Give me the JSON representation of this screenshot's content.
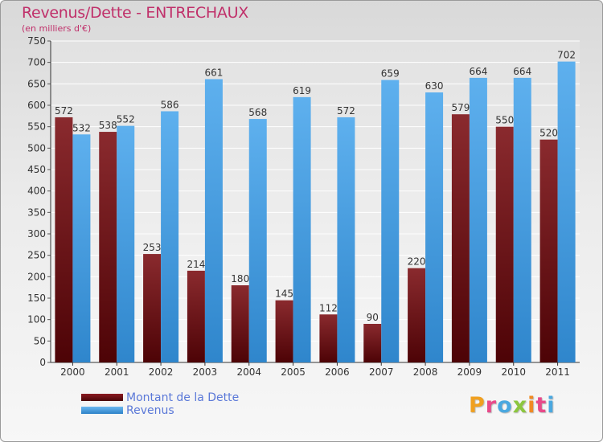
{
  "header": {
    "title": "Revenus/Dette - ENTRECHAUX",
    "subtitle": "(en milliers d'€)"
  },
  "legend": {
    "items": [
      {
        "label": "Montant de la Dette",
        "color": "#6b0e12"
      },
      {
        "label": "Revenus",
        "color": "#4ea3e6"
      }
    ]
  },
  "logo": {
    "text": "Proxiti",
    "letters": [
      {
        "ch": "P",
        "color": "#f0a020"
      },
      {
        "ch": "r",
        "color": "#e84a8a"
      },
      {
        "ch": "o",
        "color": "#4aa8e0"
      },
      {
        "ch": "x",
        "color": "#8cc63f"
      },
      {
        "ch": "i",
        "color": "#f08a24"
      },
      {
        "ch": "t",
        "color": "#e84a8a"
      },
      {
        "ch": "i",
        "color": "#4aa8e0"
      }
    ]
  },
  "chart_data": {
    "type": "bar",
    "title": "Revenus/Dette - ENTRECHAUX",
    "subtitle": "(en milliers d'€)",
    "categories": [
      "2000",
      "2001",
      "2002",
      "2003",
      "2004",
      "2005",
      "2006",
      "2007",
      "2008",
      "2009",
      "2010",
      "2011"
    ],
    "series": [
      {
        "name": "Montant de la Dette",
        "color": "#6b0e12",
        "values": [
          572,
          538,
          253,
          214,
          180,
          145,
          112,
          90,
          220,
          579,
          550,
          520
        ]
      },
      {
        "name": "Revenus",
        "color": "#4ea3e6",
        "values": [
          532,
          552,
          586,
          661,
          568,
          619,
          572,
          659,
          630,
          664,
          664,
          702
        ]
      }
    ],
    "ylim": [
      0,
      750
    ],
    "yticks": [
      0,
      50,
      100,
      150,
      200,
      250,
      300,
      350,
      400,
      450,
      500,
      550,
      600,
      650,
      700,
      750
    ],
    "grid": true,
    "legend": "bottom-left"
  }
}
